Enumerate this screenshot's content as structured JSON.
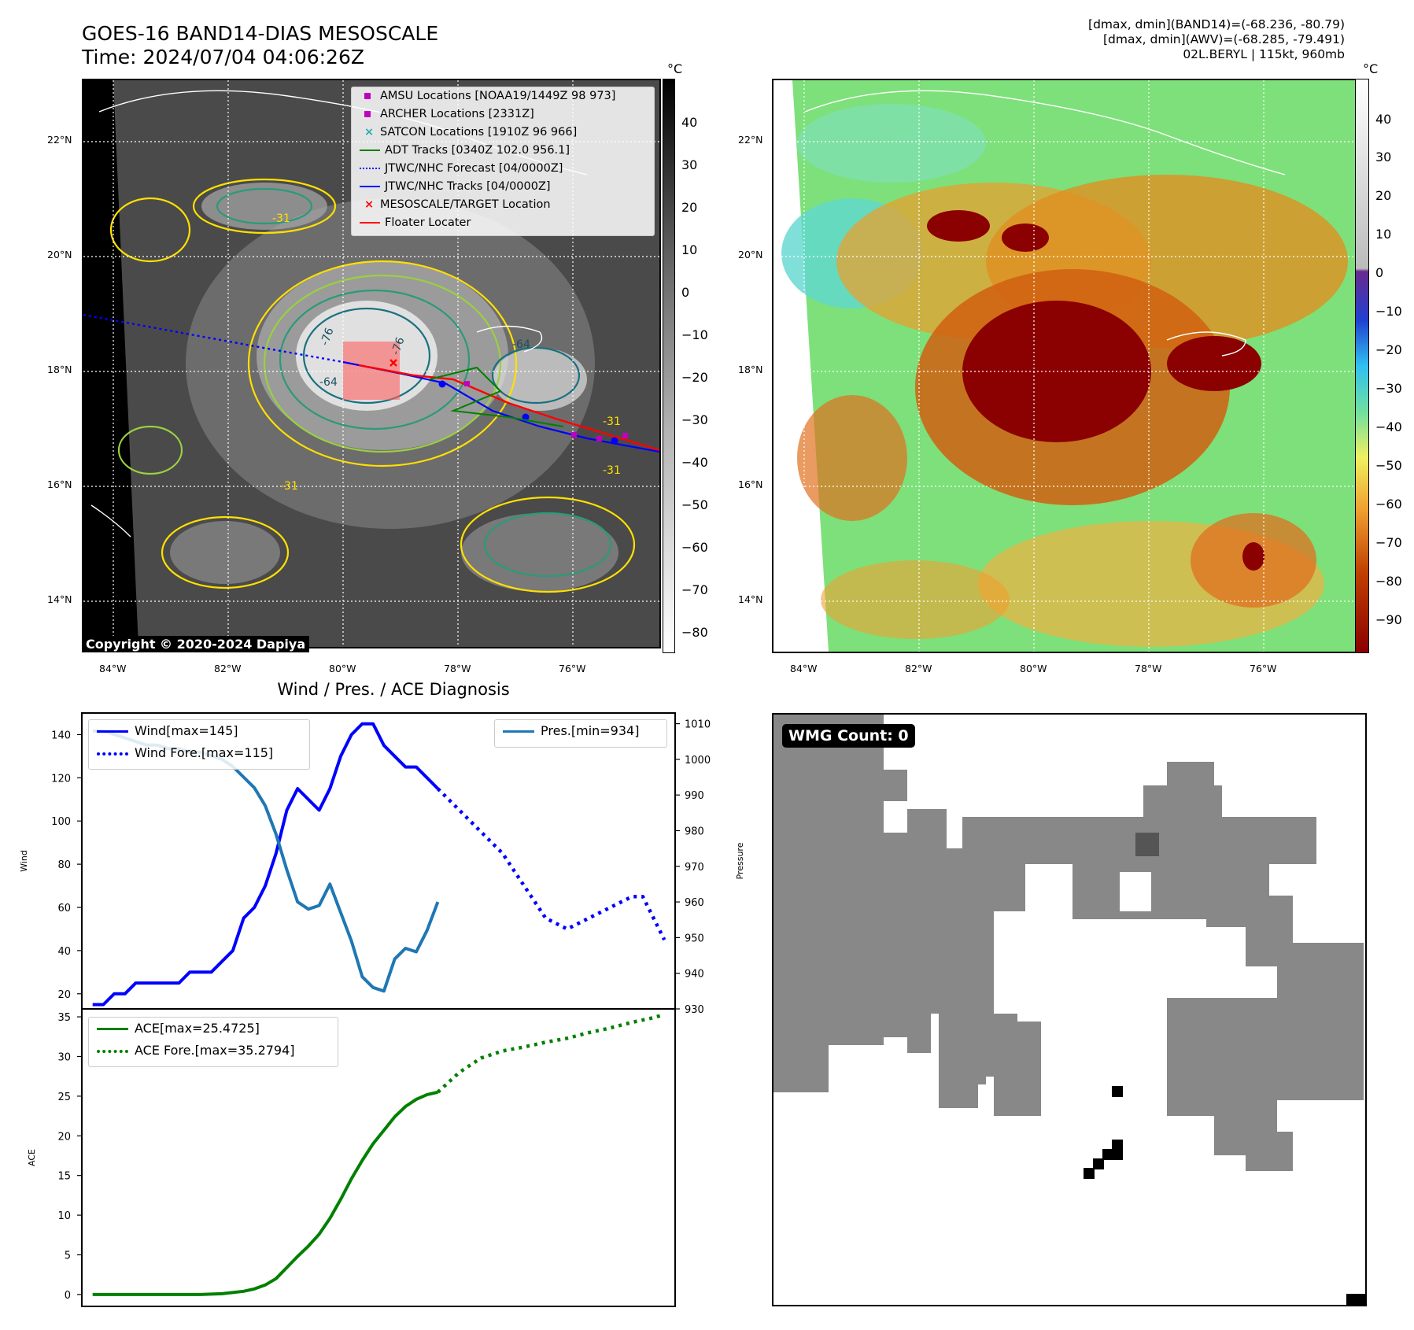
{
  "header": {
    "title_line1": "GOES-16 BAND14-DIAS MESOSCALE",
    "title_line2": "Time: 2024/07/04 04:06:26Z",
    "stats_line1": "[dmax, dmin](BAND14)=(-68.236, -80.79)",
    "stats_line2": "[dmax, dmin](AWV)=(-68.285, -79.491)",
    "stats_line3": "02L.BERYL | 115kt, 960mb"
  },
  "map": {
    "lat_labels": [
      "22°N",
      "20°N",
      "18°N",
      "16°N",
      "14°N"
    ],
    "lon_labels": [
      "84°W",
      "82°W",
      "80°W",
      "78°W",
      "76°W"
    ],
    "unit": "°C",
    "copyright": "Copyright © 2020-2024 Dapiya",
    "contour_labels": [
      "-76",
      "-76",
      "-64",
      "-64",
      "-31",
      "-31",
      "-31",
      "-31"
    ]
  },
  "cbar_left": {
    "ticks": [
      "40",
      "30",
      "20",
      "10",
      "0",
      "−10",
      "−20",
      "−30",
      "−40",
      "−50",
      "−60",
      "−70",
      "−80"
    ]
  },
  "cbar_right": {
    "ticks": [
      "40",
      "30",
      "20",
      "10",
      "0",
      "−10",
      "−20",
      "−30",
      "−40",
      "−50",
      "−60",
      "−70",
      "−80",
      "−90"
    ]
  },
  "legend_map": {
    "items": [
      {
        "label": "AMSU Locations [NOAA19/1449Z 98 973]",
        "color": "#c000c0",
        "symbol": "square"
      },
      {
        "label": "ARCHER Locations [2331Z]",
        "color": "#c000c0",
        "symbol": "square"
      },
      {
        "label": "SATCON Locations [1910Z 96 966]",
        "color": "#20b0b0",
        "symbol": "x"
      },
      {
        "label": "ADT Tracks [0340Z 102.0 956.1]",
        "color": "#008000",
        "symbol": "line"
      },
      {
        "label": "JTWC/NHC Forecast [04/0000Z]",
        "color": "#0000ff",
        "symbol": "dotted"
      },
      {
        "label": "JTWC/NHC Tracks [04/0000Z]",
        "color": "#0000ff",
        "symbol": "line-dot"
      },
      {
        "label": "MESOSCALE/TARGET Location",
        "color": "#ff0000",
        "symbol": "x"
      },
      {
        "label": "Floater Locater",
        "color": "#ff0000",
        "symbol": "line"
      }
    ]
  },
  "diagnosis": {
    "title": "Wind / Pres. / ACE Diagnosis",
    "wind_ylabel": "Wind",
    "pres_ylabel": "Pressure",
    "ace_ylabel": "ACE",
    "wind_ticks": [
      "140",
      "120",
      "100",
      "80",
      "60",
      "40",
      "20"
    ],
    "pres_ticks": [
      "1010",
      "1000",
      "990",
      "980",
      "970",
      "960",
      "950",
      "940",
      "930"
    ],
    "ace_ticks": [
      "35",
      "30",
      "25",
      "20",
      "15",
      "10",
      "5",
      "0"
    ],
    "legend_wind": "Wind[max=145]",
    "legend_wind_fore": "Wind Fore.[max=115]",
    "legend_pres": "Pres.[min=934]",
    "legend_ace": "ACE[max=25.4725]",
    "legend_ace_fore": "ACE Fore.[max=35.2794]"
  },
  "wmg": {
    "label": "WMG Count: 0"
  },
  "chart_data": [
    {
      "type": "line",
      "title": "Wind / Pres. / ACE Diagnosis",
      "ylabel": "Wind",
      "ylim": [
        13,
        150
      ],
      "x": [
        0,
        1,
        2,
        3,
        4,
        5,
        6,
        7,
        8,
        9,
        10,
        11,
        12,
        13,
        14,
        15,
        16,
        17,
        18,
        19,
        20,
        21,
        22,
        23,
        24,
        25,
        26,
        27,
        28,
        29,
        30,
        31,
        32,
        33,
        34,
        35,
        36,
        37,
        38,
        39,
        40,
        41,
        42,
        43,
        44,
        45,
        46,
        47,
        48,
        49,
        50,
        51,
        52,
        53
      ],
      "series": [
        {
          "name": "Wind[max=145]",
          "color": "#0000ff",
          "style": "solid",
          "x": [
            0,
            1,
            2,
            3,
            4,
            5,
            6,
            7,
            8,
            9,
            10,
            11,
            12,
            13,
            14,
            15,
            16,
            17,
            18,
            19,
            20,
            21,
            22,
            23,
            24,
            25,
            26,
            27,
            28,
            29,
            30,
            31,
            32
          ],
          "values": [
            15,
            15,
            20,
            20,
            25,
            25,
            25,
            25,
            25,
            30,
            30,
            30,
            35,
            40,
            55,
            60,
            70,
            85,
            105,
            115,
            110,
            105,
            115,
            130,
            140,
            145,
            145,
            135,
            130,
            125,
            125,
            120,
            115
          ]
        },
        {
          "name": "Wind Fore.[max=115]",
          "color": "#0000ff",
          "style": "dotted",
          "x": [
            32,
            34,
            36,
            38,
            40,
            42,
            44,
            46,
            48,
            50,
            51,
            52,
            53
          ],
          "values": [
            115,
            105,
            95,
            85,
            70,
            55,
            50,
            55,
            60,
            65,
            65,
            55,
            45
          ]
        }
      ]
    },
    {
      "type": "line",
      "ylabel": "Pressure",
      "ylim": [
        930,
        1013
      ],
      "series": [
        {
          "name": "Pres.[min=934]",
          "color": "#1f77b4",
          "style": "solid",
          "x": [
            0,
            1,
            2,
            3,
            4,
            5,
            6,
            7,
            8,
            9,
            10,
            11,
            12,
            13,
            14,
            15,
            16,
            17,
            18,
            19,
            20,
            21,
            22,
            23,
            24,
            25,
            26,
            27,
            28,
            29,
            30,
            31,
            32
          ],
          "values": [
            1008,
            1008,
            1007,
            1006,
            1005,
            1004,
            1004,
            1003,
            1003,
            1002,
            1002,
            1001,
            1000,
            998,
            995,
            992,
            987,
            979,
            969,
            960,
            958,
            959,
            965,
            957,
            949,
            939,
            936,
            935,
            944,
            947,
            946,
            952,
            960
          ]
        }
      ]
    },
    {
      "type": "line",
      "ylabel": "ACE",
      "ylim": [
        -1.5,
        36
      ],
      "series": [
        {
          "name": "ACE[max=25.4725]",
          "color": "#008000",
          "style": "solid",
          "x": [
            0,
            2,
            4,
            6,
            8,
            10,
            12,
            14,
            15,
            16,
            17,
            18,
            19,
            20,
            21,
            22,
            23,
            24,
            25,
            26,
            27,
            28,
            29,
            30,
            31,
            32
          ],
          "values": [
            0,
            0,
            0,
            0,
            0,
            0,
            0.1,
            0.4,
            0.7,
            1.2,
            2.0,
            3.4,
            4.8,
            6.1,
            7.6,
            9.6,
            12.0,
            14.6,
            16.9,
            19.0,
            20.7,
            22.4,
            23.7,
            24.6,
            25.2,
            25.5
          ]
        },
        {
          "name": "ACE Fore.[max=35.2794]",
          "color": "#008000",
          "style": "dotted",
          "x": [
            32,
            34,
            36,
            38,
            40,
            42,
            44,
            46,
            48,
            50,
            52,
            53
          ],
          "values": [
            25.5,
            28.0,
            29.8,
            30.7,
            31.2,
            31.8,
            32.3,
            33.0,
            33.6,
            34.3,
            34.9,
            35.3
          ]
        }
      ]
    }
  ]
}
